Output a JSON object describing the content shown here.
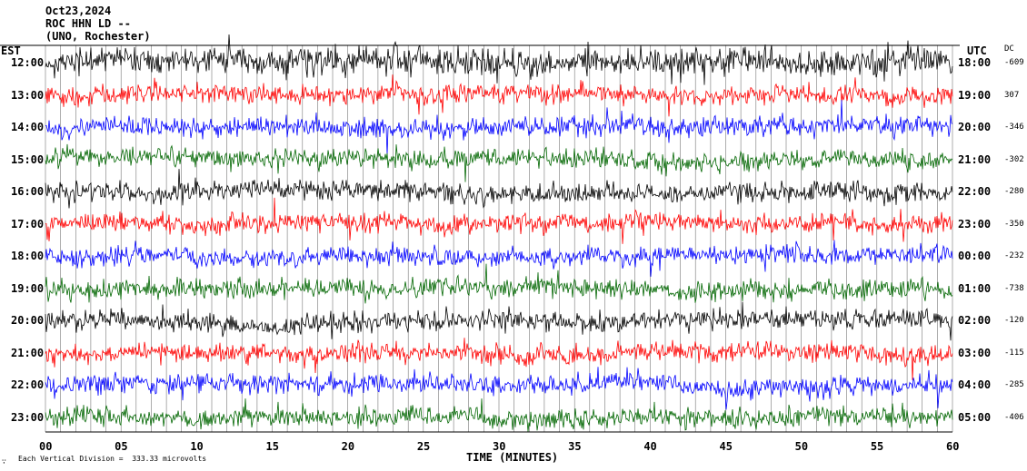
{
  "header": {
    "date": "Oct23,2024",
    "station": "ROC HHN LD --",
    "location": "(UNO, Rochester)"
  },
  "left_axis_label": "EST",
  "right_axis_label": "UTC",
  "dc_label": "DC",
  "x_axis_title": "TIME (MINUTES)",
  "footer_note": "Each Vertical Division =  333.33 microvolts",
  "chart_data": {
    "type": "line",
    "title": "Oct23,2024 ROC HHN LD -- (UNO, Rochester)",
    "xlabel": "TIME (MINUTES)",
    "ylabel": "",
    "xlim": [
      0,
      60
    ],
    "x_ticks": [
      "00",
      "05",
      "10",
      "15",
      "20",
      "25",
      "30",
      "35",
      "40",
      "45",
      "50",
      "55",
      "60"
    ],
    "grid": "vertical lines every minute",
    "trace_colors": [
      "#000000",
      "#ff0000",
      "#0000ff",
      "#006600"
    ],
    "rows": [
      {
        "est": "12:00",
        "utc": "18:00",
        "dc": "-609"
      },
      {
        "est": "13:00",
        "utc": "19:00",
        "dc": "307"
      },
      {
        "est": "14:00",
        "utc": "20:00",
        "dc": "-346"
      },
      {
        "est": "15:00",
        "utc": "21:00",
        "dc": "-302"
      },
      {
        "est": "16:00",
        "utc": "22:00",
        "dc": "-280"
      },
      {
        "est": "17:00",
        "utc": "23:00",
        "dc": "-350"
      },
      {
        "est": "18:00",
        "utc": "00:00",
        "dc": "-232"
      },
      {
        "est": "19:00",
        "utc": "01:00",
        "dc": "-738"
      },
      {
        "est": "20:00",
        "utc": "02:00",
        "dc": "-120"
      },
      {
        "est": "21:00",
        "utc": "03:00",
        "dc": "-115"
      },
      {
        "est": "22:00",
        "utc": "04:00",
        "dc": "-285"
      },
      {
        "est": "23:00",
        "utc": "05:00",
        "dc": "-406"
      }
    ]
  }
}
